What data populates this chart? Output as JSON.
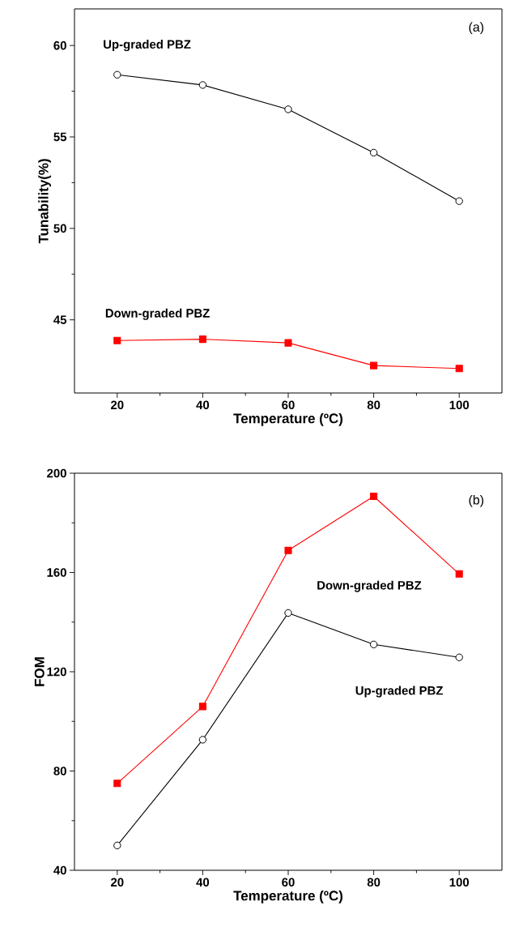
{
  "chart_data": [
    {
      "type": "line",
      "xlabel": "Temperature (ºC)",
      "ylabel": "Tunability(%)",
      "annotations": [
        "(a)"
      ],
      "x": [
        20,
        40,
        60,
        80,
        100
      ],
      "xlim": [
        10,
        110
      ],
      "xticks": [
        20,
        40,
        60,
        80,
        100
      ],
      "ylim": [
        41,
        62
      ],
      "yticks": [
        45,
        50,
        55,
        60
      ],
      "grid": false,
      "legend": false,
      "line_style": "solid",
      "series": [
        {
          "name": "Up-graded PBZ",
          "color": "#000000",
          "marker": "circle",
          "values": [
            58.4,
            57.84,
            56.51,
            54.14,
            51.49
          ]
        },
        {
          "name": "Down-graded PBZ",
          "color": "#ff0000",
          "marker": "square",
          "values": [
            43.87,
            43.94,
            43.74,
            42.5,
            42.34
          ]
        }
      ]
    },
    {
      "type": "line",
      "xlabel": "Temperature (ºC)",
      "ylabel": "FOM",
      "annotations": [
        "(b)"
      ],
      "x": [
        20,
        40,
        60,
        80,
        100
      ],
      "xlim": [
        10,
        110
      ],
      "xticks": [
        20,
        40,
        60,
        80,
        100
      ],
      "ylim": [
        40,
        200
      ],
      "yticks": [
        40,
        80,
        120,
        160,
        200
      ],
      "grid": false,
      "legend": false,
      "line_style": "solid",
      "series": [
        {
          "name": "Up-graded PBZ",
          "color": "#000000",
          "marker": "circle",
          "values": [
            50,
            92.6,
            143.7,
            131,
            125.8
          ]
        },
        {
          "name": "Down-graded PBZ",
          "color": "#ff0000",
          "marker": "square",
          "values": [
            75,
            106,
            168.9,
            190.7,
            159.4
          ]
        }
      ]
    }
  ]
}
